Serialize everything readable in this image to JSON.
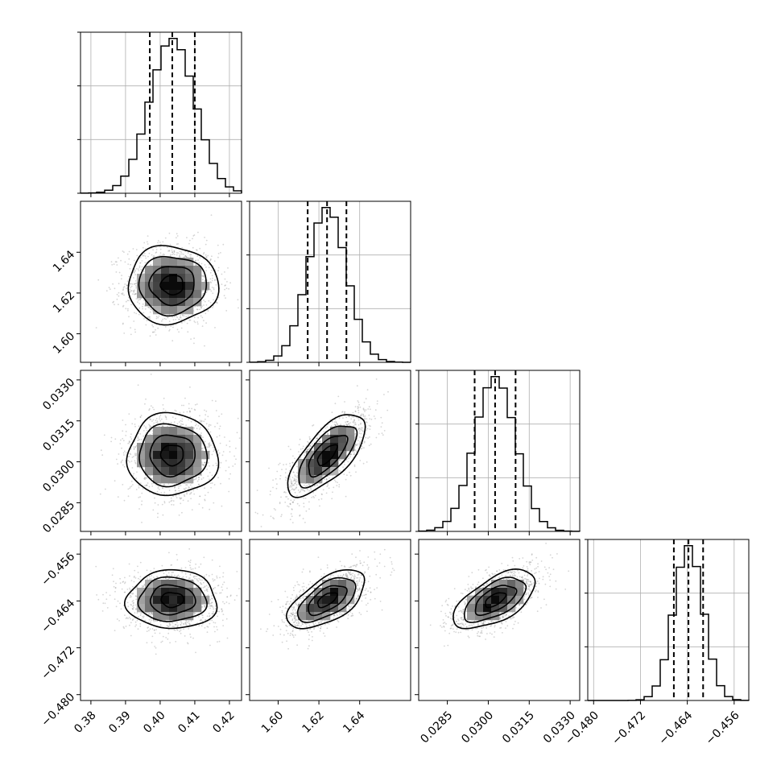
{
  "chart_data": {
    "type": "corner",
    "parameters": [
      {
        "mean": 0.4035,
        "std": 0.0065,
        "range": [
          0.377,
          0.4235
        ],
        "quantiles": [
          0.397,
          0.4035,
          0.41
        ],
        "ticks": [
          0.38,
          0.39,
          0.4,
          0.41,
          0.42
        ],
        "tick_labels": [
          "0.38",
          "0.39",
          "0.40",
          "0.41",
          "0.42"
        ]
      },
      {
        "mean": 1.624,
        "std": 0.0095,
        "range": [
          1.586,
          1.665
        ],
        "quantiles": [
          1.6145,
          1.624,
          1.6335
        ],
        "ticks": [
          1.6,
          1.62,
          1.64
        ],
        "tick_labels": [
          "1.60",
          "1.62",
          "1.64"
        ]
      },
      {
        "mean": 0.03025,
        "std": 0.00075,
        "range": [
          0.02745,
          0.03335
        ],
        "quantiles": [
          0.0295,
          0.03025,
          0.031
        ],
        "ticks": [
          0.0285,
          0.03,
          0.0315,
          0.033
        ],
        "tick_labels": [
          "0.0285",
          "0.0300",
          "0.0315",
          "0.0330"
        ]
      },
      {
        "mean": -0.4638,
        "std": 0.0025,
        "range": [
          -0.481,
          -0.4535
        ],
        "quantiles": [
          -0.4663,
          -0.4638,
          -0.4613
        ],
        "ticks": [
          -0.48,
          -0.472,
          -0.464,
          -0.456
        ],
        "tick_labels": [
          "−0.480",
          "−0.472",
          "−0.464",
          "−0.456"
        ]
      }
    ],
    "correlations": [
      [
        1,
        0,
        0,
        0
      ],
      [
        0,
        1,
        0.7,
        0.6
      ],
      [
        0,
        0.7,
        1,
        0.6
      ],
      [
        0,
        0.6,
        0.6,
        1
      ]
    ],
    "histogram_bins": 20,
    "contour_levels_sigma": [
      0.5,
      1.0,
      1.5,
      2.0
    ],
    "scatter_color": "#888888",
    "grid": true
  }
}
